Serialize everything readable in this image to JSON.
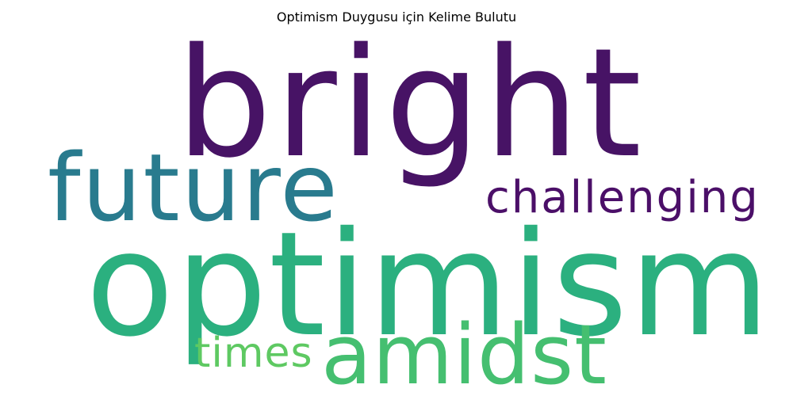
{
  "title": "Optimism Duygusu için Kelime Bulutu",
  "words": [
    {
      "text": "bright",
      "color": "#471365",
      "key": "bright"
    },
    {
      "text": "future",
      "color": "#297b8e",
      "key": "future"
    },
    {
      "text": "challenging",
      "color": "#4b0f68",
      "key": "challenging"
    },
    {
      "text": "optimism",
      "color": "#2bb07f",
      "key": "optimism"
    },
    {
      "text": "times",
      "color": "#5ec962",
      "key": "times"
    },
    {
      "text": "amidst",
      "color": "#45bf70",
      "key": "amidst"
    }
  ]
}
